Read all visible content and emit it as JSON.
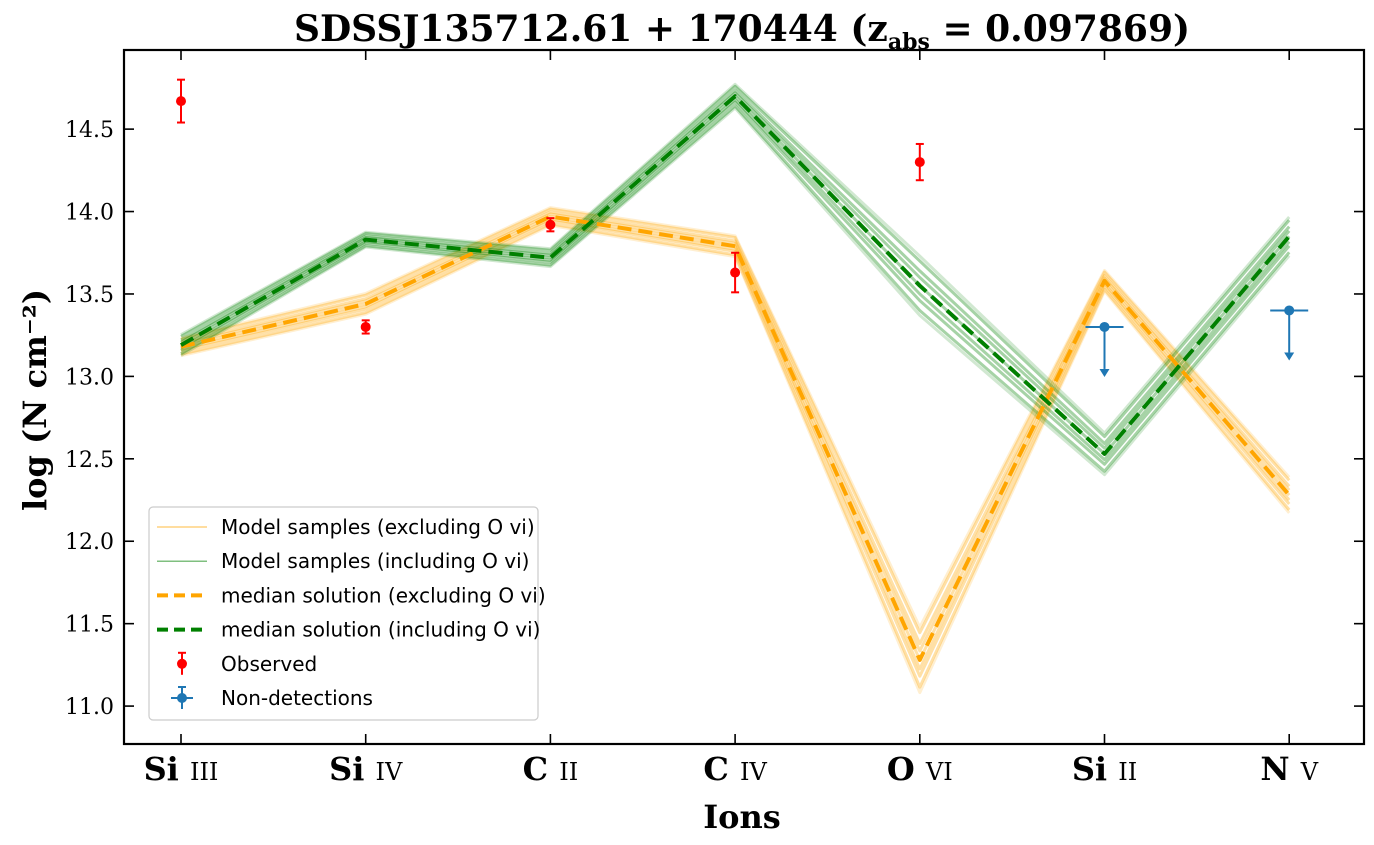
{
  "chart_data": {
    "type": "line",
    "title": "SDSSJ135712.61 + 170444 (z_abs = 0.097869)",
    "title_main": "SDSSJ135712.61 + 170444 (z",
    "title_sub": "abs",
    "title_tail": " = 0.097869)",
    "xlabel": "Ions",
    "ylabel": "log (N cm⁻²)",
    "ylim": [
      10.77,
      14.98
    ],
    "yticks": [
      "11.0",
      "11.5",
      "12.0",
      "12.5",
      "13.0",
      "13.5",
      "14.0",
      "14.5"
    ],
    "categories": [
      "Si III",
      "Si IV",
      "C II",
      "C IV",
      "O VI",
      "Si II",
      "N V"
    ],
    "category_labels": [
      {
        "element": "Si",
        "state": "III"
      },
      {
        "element": "Si",
        "state": "IV"
      },
      {
        "element": "C",
        "state": "II"
      },
      {
        "element": "C",
        "state": "IV"
      },
      {
        "element": "O",
        "state": "VI"
      },
      {
        "element": "Si",
        "state": "II"
      },
      {
        "element": "N",
        "state": "V"
      }
    ],
    "grid": false,
    "legend_position": "lower-left",
    "series": [
      {
        "name": "median solution (excluding O vi)",
        "color": "#ffa500",
        "style": "dashed",
        "values": [
          13.18,
          13.44,
          13.97,
          13.79,
          11.28,
          13.58,
          12.28
        ]
      },
      {
        "name": "median solution (including O vi)",
        "color": "#008000",
        "style": "dashed",
        "values": [
          13.19,
          13.83,
          13.72,
          14.7,
          13.55,
          12.53,
          13.85
        ]
      }
    ],
    "sample_bands": [
      {
        "name": "Model samples (excluding O vi)",
        "color": "#ffa500",
        "values": [
          13.18,
          13.44,
          13.97,
          13.79,
          11.28,
          13.58,
          12.28
        ],
        "spread": [
          0.06,
          0.07,
          0.06,
          0.07,
          0.22,
          0.07,
          0.12
        ]
      },
      {
        "name": "Model samples (including O vi)",
        "color": "#008000",
        "values": [
          13.19,
          13.83,
          13.72,
          14.7,
          13.55,
          12.53,
          13.85
        ],
        "spread": [
          0.07,
          0.05,
          0.06,
          0.08,
          0.2,
          0.14,
          0.13
        ]
      }
    ],
    "observed": {
      "name": "Observed",
      "color": "#ff0000",
      "points": [
        {
          "ion": "Si III",
          "y": 14.67,
          "err": 0.13
        },
        {
          "ion": "Si IV",
          "y": 13.3,
          "err": 0.04
        },
        {
          "ion": "C II",
          "y": 13.92,
          "err": 0.04
        },
        {
          "ion": "C IV",
          "y": 13.63,
          "err": 0.12
        },
        {
          "ion": "O VI",
          "y": 14.3,
          "err": 0.11
        }
      ]
    },
    "non_detections": {
      "name": "Non-detections",
      "color": "#1f77b4",
      "points": [
        {
          "ion": "Si II",
          "y": 13.3
        },
        {
          "ion": "N V",
          "y": 13.4
        }
      ]
    },
    "legend": [
      {
        "kind": "line",
        "label": "Model samples (excluding O vi)",
        "color": "#ffa500"
      },
      {
        "kind": "line",
        "label": "Model samples (including O vi)",
        "color": "#008000"
      },
      {
        "kind": "dashed",
        "label": "median solution (excluding O vi)",
        "color": "#ffa500"
      },
      {
        "kind": "dashed",
        "label": "median solution (including O vi)",
        "color": "#008000"
      },
      {
        "kind": "errorbar",
        "label": "Observed",
        "color": "#ff0000"
      },
      {
        "kind": "xyerror",
        "label": "Non-detections",
        "color": "#1f77b4"
      }
    ]
  }
}
